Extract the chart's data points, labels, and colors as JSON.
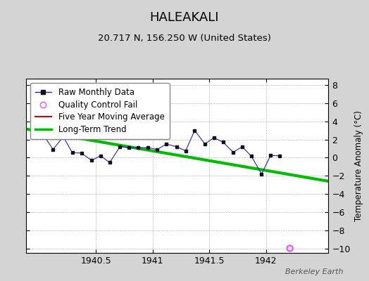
{
  "title": "HALEAKALI",
  "subtitle": "20.717 N, 156.250 W (United States)",
  "ylabel": "Temperature Anomaly (°C)",
  "watermark": "Berkeley Earth",
  "background_color": "#d4d4d4",
  "plot_background": "#ffffff",
  "xlim": [
    1939.88,
    1942.55
  ],
  "ylim": [
    -10.5,
    8.7
  ],
  "yticks": [
    -10,
    -8,
    -6,
    -4,
    -2,
    0,
    2,
    4,
    6,
    8
  ],
  "xtick_values": [
    1940.5,
    1941.0,
    1941.5,
    1942.0
  ],
  "xtick_labels": [
    "1940.5",
    "1941",
    "1941.5",
    "1942"
  ],
  "raw_x": [
    1940.04,
    1940.12,
    1940.21,
    1940.29,
    1940.37,
    1940.46,
    1940.54,
    1940.62,
    1940.71,
    1940.79,
    1940.87,
    1940.96,
    1941.04,
    1941.12,
    1941.21,
    1941.29,
    1941.37,
    1941.46,
    1941.54,
    1941.62,
    1941.71,
    1941.79,
    1941.87,
    1941.96,
    1942.04,
    1942.12
  ],
  "raw_y": [
    2.4,
    0.9,
    2.3,
    0.55,
    0.5,
    -0.3,
    0.2,
    -0.55,
    1.2,
    1.1,
    1.1,
    1.1,
    0.9,
    1.5,
    1.2,
    0.75,
    3.0,
    1.5,
    2.2,
    1.7,
    0.6,
    1.2,
    0.15,
    -1.8,
    0.25,
    0.2
  ],
  "trend_x": [
    1939.88,
    1942.55
  ],
  "trend_y": [
    3.15,
    -2.6
  ],
  "qc_fail_x": [
    1942.21
  ],
  "qc_fail_y": [
    -10.0
  ],
  "raw_line_color": "#2222cc",
  "raw_marker_color": "#111111",
  "raw_marker_size": 3.5,
  "trend_color": "#00bb00",
  "trend_linewidth": 3.0,
  "moving_avg_color": "#cc0000",
  "qc_color": "#ff44ff",
  "legend_fontsize": 8.5,
  "title_fontsize": 13,
  "subtitle_fontsize": 9.5
}
